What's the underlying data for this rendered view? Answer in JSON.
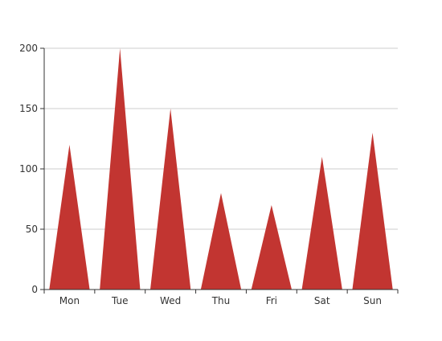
{
  "chart_data": {
    "type": "bar",
    "bar_shape": "triangle",
    "categories": [
      "Mon",
      "Tue",
      "Wed",
      "Thu",
      "Fri",
      "Sat",
      "Sun"
    ],
    "series": [
      {
        "values": [
          120,
          200,
          150,
          80,
          70,
          110,
          130
        ],
        "color": "#c23531"
      }
    ],
    "title": "",
    "xlabel": "",
    "ylabel": "",
    "ylim": [
      0,
      200
    ],
    "yticks": [
      0,
      50,
      100,
      150,
      200
    ],
    "grid": {
      "horizontal": true,
      "vertical": false,
      "color": "#cccccc"
    },
    "legend": "none"
  }
}
